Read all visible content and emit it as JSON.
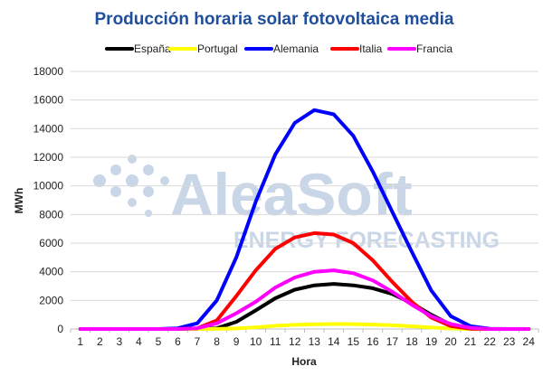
{
  "chart_data": {
    "type": "line",
    "title": "Producción horaria solar fotovoltaica media",
    "xlabel": "Hora",
    "ylabel": "MWh",
    "ylim": [
      0,
      18000
    ],
    "yticks": [
      0,
      2000,
      4000,
      6000,
      8000,
      10000,
      12000,
      14000,
      16000,
      18000
    ],
    "x": [
      1,
      2,
      3,
      4,
      5,
      6,
      7,
      8,
      9,
      10,
      11,
      12,
      13,
      14,
      15,
      16,
      17,
      18,
      19,
      20,
      21,
      22,
      23,
      24
    ],
    "legend_position": "top",
    "grid": "horizontal",
    "watermark": {
      "line1": "AleaSoft",
      "line2": "ENERGY FORECASTING"
    },
    "series": [
      {
        "name": "España",
        "color": "#000000",
        "values": [
          0,
          0,
          0,
          0,
          0,
          0,
          0,
          50,
          500,
          1300,
          2150,
          2750,
          3050,
          3150,
          3050,
          2850,
          2450,
          1800,
          1000,
          300,
          30,
          0,
          0,
          0
        ]
      },
      {
        "name": "Portugal",
        "color": "#ffff00",
        "values": [
          0,
          0,
          0,
          0,
          0,
          0,
          0,
          5,
          40,
          120,
          220,
          290,
          330,
          350,
          340,
          310,
          260,
          190,
          100,
          30,
          0,
          0,
          0,
          0
        ]
      },
      {
        "name": "Alemania",
        "color": "#0000ff",
        "values": [
          0,
          0,
          0,
          0,
          0,
          50,
          400,
          2000,
          5000,
          8900,
          12200,
          14400,
          15300,
          15000,
          13500,
          11000,
          8200,
          5400,
          2700,
          900,
          200,
          20,
          0,
          0
        ]
      },
      {
        "name": "Italia",
        "color": "#ff0000",
        "values": [
          0,
          0,
          0,
          0,
          0,
          0,
          50,
          600,
          2300,
          4100,
          5600,
          6400,
          6700,
          6600,
          6000,
          4800,
          3300,
          1900,
          800,
          200,
          20,
          0,
          0,
          0
        ]
      },
      {
        "name": "Francia",
        "color": "#ff00ff",
        "values": [
          0,
          0,
          0,
          0,
          0,
          0,
          50,
          400,
          1100,
          1900,
          2900,
          3600,
          4000,
          4100,
          3900,
          3400,
          2600,
          1700,
          900,
          350,
          80,
          0,
          0,
          0
        ]
      }
    ]
  }
}
